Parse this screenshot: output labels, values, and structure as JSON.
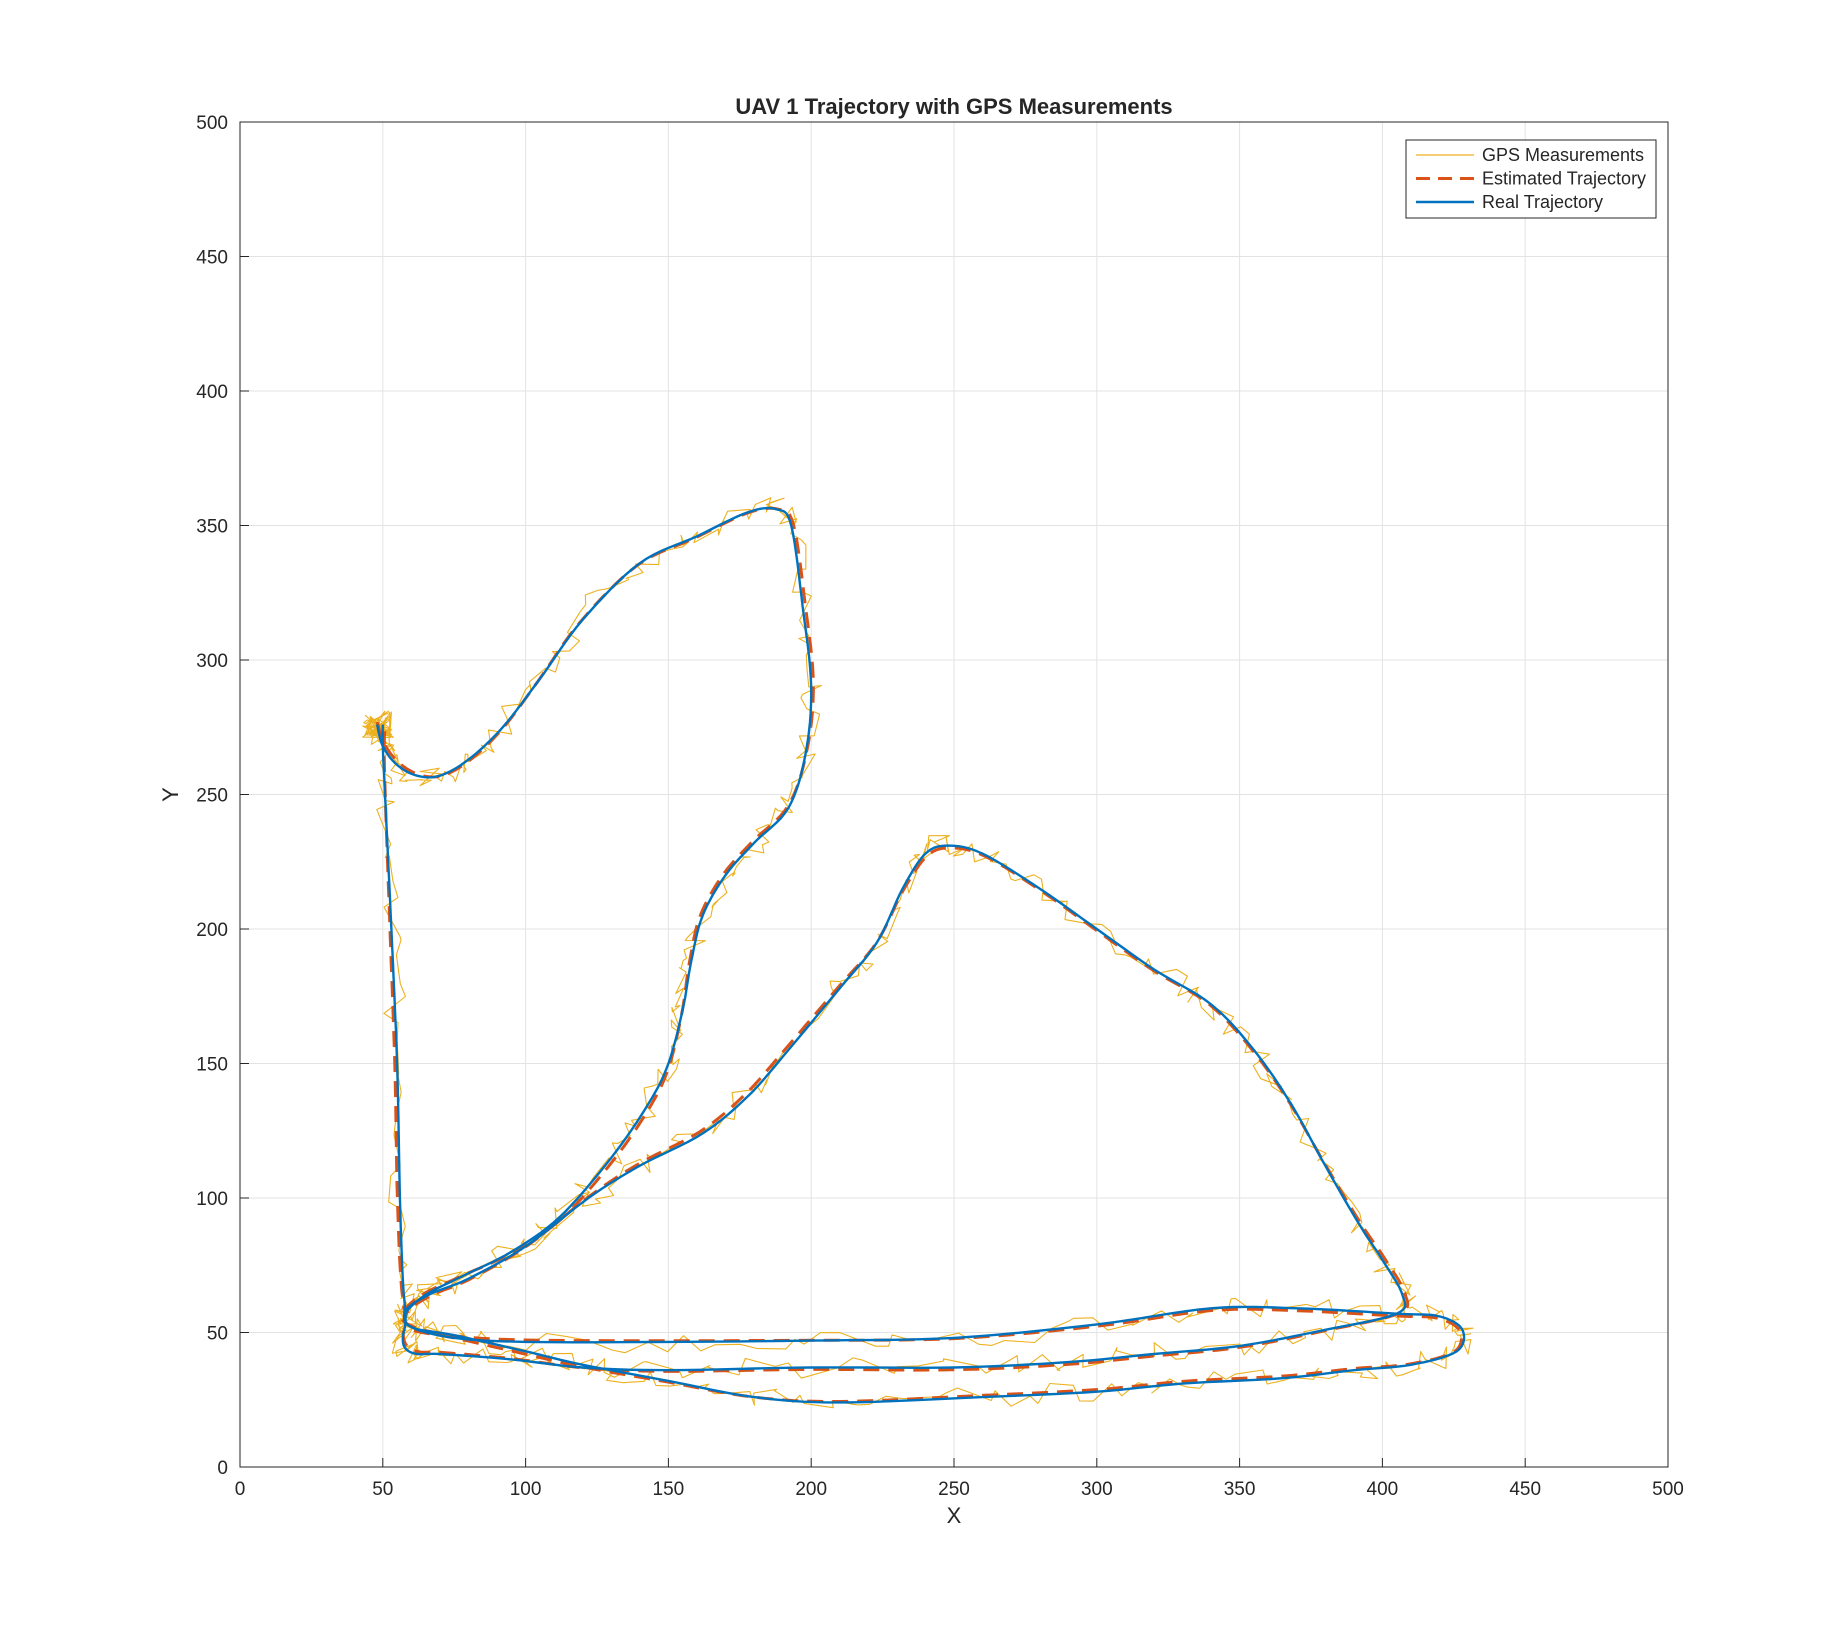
{
  "chart_data": {
    "type": "line",
    "title": "UAV 1 Trajectory with GPS Measurements",
    "xlabel": "X",
    "ylabel": "Y",
    "xlim": [
      0,
      500
    ],
    "ylim": [
      0,
      500
    ],
    "xticks": [
      "0",
      "50",
      "100",
      "150",
      "200",
      "250",
      "300",
      "350",
      "400",
      "450",
      "500"
    ],
    "yticks": [
      "0",
      "50",
      "100",
      "150",
      "200",
      "250",
      "300",
      "350",
      "400",
      "450",
      "500"
    ],
    "grid": true,
    "legend_position": "top-right",
    "series": [
      {
        "name": "GPS Measurements",
        "color": "#EDB120",
        "style": "thin-solid-noisy",
        "noise_amplitude": 4
      },
      {
        "name": "Estimated Trajectory",
        "color": "#D95319",
        "style": "dashed"
      },
      {
        "name": "Real Trajectory",
        "color": "#0072BD",
        "style": "solid"
      }
    ],
    "waypoints": [
      [
        48,
        276
      ],
      [
        50,
        268
      ],
      [
        55,
        261
      ],
      [
        62,
        257
      ],
      [
        70,
        257
      ],
      [
        80,
        263
      ],
      [
        92,
        275
      ],
      [
        105,
        293
      ],
      [
        120,
        315
      ],
      [
        140,
        336
      ],
      [
        160,
        346
      ],
      [
        178,
        355
      ],
      [
        188,
        356
      ],
      [
        193,
        350
      ],
      [
        197,
        320
      ],
      [
        200,
        290
      ],
      [
        198,
        265
      ],
      [
        192,
        245
      ],
      [
        180,
        232
      ],
      [
        170,
        220
      ],
      [
        162,
        205
      ],
      [
        158,
        188
      ],
      [
        155,
        170
      ],
      [
        150,
        150
      ],
      [
        143,
        135
      ],
      [
        130,
        115
      ],
      [
        112,
        93
      ],
      [
        95,
        80
      ],
      [
        78,
        71
      ],
      [
        65,
        64
      ],
      [
        58,
        57
      ],
      [
        60,
        52
      ],
      [
        75,
        48
      ],
      [
        100,
        46.5
      ],
      [
        150,
        46.5
      ],
      [
        200,
        47
      ],
      [
        250,
        48
      ],
      [
        300,
        53
      ],
      [
        340,
        59
      ],
      [
        370,
        59
      ],
      [
        405,
        57
      ],
      [
        420,
        56
      ],
      [
        428,
        51
      ],
      [
        426,
        43
      ],
      [
        410,
        38
      ],
      [
        390,
        36
      ],
      [
        365,
        33
      ],
      [
        330,
        31
      ],
      [
        300,
        28
      ],
      [
        260,
        26
      ],
      [
        210,
        24
      ],
      [
        180,
        26
      ],
      [
        150,
        32
      ],
      [
        120,
        38
      ],
      [
        100,
        43
      ],
      [
        75,
        49
      ],
      [
        60,
        52
      ],
      [
        58,
        58
      ],
      [
        66,
        64
      ],
      [
        80,
        70
      ],
      [
        100,
        82
      ],
      [
        122,
        100
      ],
      [
        140,
        112
      ],
      [
        162,
        124
      ],
      [
        178,
        138
      ],
      [
        192,
        155
      ],
      [
        210,
        178
      ],
      [
        223,
        195
      ],
      [
        232,
        215
      ],
      [
        240,
        228
      ],
      [
        248,
        231
      ],
      [
        260,
        228
      ],
      [
        280,
        215
      ],
      [
        300,
        200
      ],
      [
        320,
        185
      ],
      [
        340,
        172
      ],
      [
        355,
        155
      ],
      [
        368,
        135
      ],
      [
        380,
        112
      ],
      [
        392,
        90
      ],
      [
        400,
        77
      ],
      [
        407,
        64
      ],
      [
        405,
        57
      ],
      [
        380,
        51
      ],
      [
        350,
        45
      ],
      [
        320,
        42
      ],
      [
        290,
        39
      ],
      [
        250,
        37
      ],
      [
        200,
        37
      ],
      [
        150,
        36
      ],
      [
        120,
        37
      ],
      [
        95,
        40
      ],
      [
        70,
        42
      ],
      [
        62,
        42
      ],
      [
        58,
        44
      ],
      [
        57,
        48
      ],
      [
        58,
        55
      ],
      [
        57,
        70
      ],
      [
        56,
        100
      ],
      [
        55,
        150
      ],
      [
        53,
        200
      ],
      [
        51,
        245
      ],
      [
        50,
        268
      ],
      [
        50,
        276
      ]
    ]
  }
}
